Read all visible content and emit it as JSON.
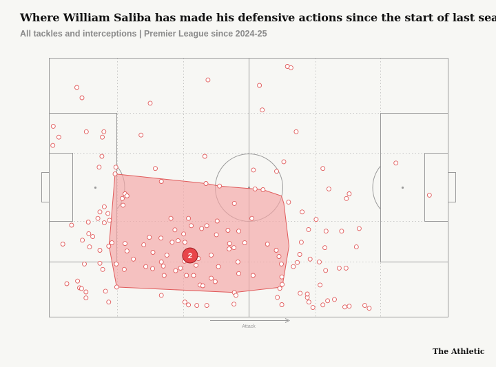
{
  "title": "Where William Saliba has made his defensive actions since the start of last season",
  "subtitle": "All tackles and interceptions | Premier League since 2024-25",
  "brand": "The Athletic",
  "colors": {
    "line": "#9a9a9a",
    "grid": "#b9b9b9",
    "action_stroke": "#e05a5a",
    "action_fill": "#ffffff",
    "hull_fill": "#f4a5a5",
    "hull_stroke": "#e05a5a",
    "centroid_fill": "#e8454a",
    "centroid_stroke": "#9a1f24"
  },
  "chart_data": {
    "type": "scatter",
    "title": "Where William Saliba has made his defensive actions since the start of last season",
    "subtitle": "All tackles and interceptions | Premier League since 2024-25",
    "xlim": [
      0,
      100
    ],
    "ylim": [
      0,
      100
    ],
    "direction_label": "Attack",
    "centroid_label": "2",
    "centroid": [
      35.3,
      23.8
    ],
    "hull": [
      [
        16.5,
        55.3
      ],
      [
        39.3,
        51.6
      ],
      [
        42.7,
        50.6
      ],
      [
        51.4,
        49.5
      ],
      [
        53.6,
        49.2
      ],
      [
        58.2,
        46.8
      ],
      [
        58.8,
        43.9
      ],
      [
        60.1,
        27.4
      ],
      [
        58.4,
        11.6
      ],
      [
        46.4,
        9.5
      ],
      [
        16.9,
        11.6
      ],
      [
        15.0,
        27.4
      ]
    ],
    "points": [
      [
        59.7,
        96.8
      ],
      [
        60.6,
        96.3
      ],
      [
        39.8,
        91.6
      ],
      [
        52.7,
        89.5
      ],
      [
        6.9,
        88.7
      ],
      [
        8.2,
        84.7
      ],
      [
        25.3,
        82.6
      ],
      [
        53.4,
        80.0
      ],
      [
        1.0,
        73.7
      ],
      [
        9.3,
        71.6
      ],
      [
        13.7,
        71.6
      ],
      [
        2.4,
        69.5
      ],
      [
        13.3,
        69.5
      ],
      [
        23.0,
        70.3
      ],
      [
        61.9,
        71.6
      ],
      [
        0.9,
        66.3
      ],
      [
        13.2,
        62.1
      ],
      [
        39.0,
        62.1
      ],
      [
        58.8,
        60.0
      ],
      [
        12.5,
        57.9
      ],
      [
        16.7,
        57.9
      ],
      [
        26.6,
        57.4
      ],
      [
        51.2,
        56.8
      ],
      [
        57.0,
        56.3
      ],
      [
        68.6,
        57.4
      ],
      [
        86.9,
        59.5
      ],
      [
        16.5,
        55.3
      ],
      [
        28.1,
        52.4
      ],
      [
        39.3,
        51.6
      ],
      [
        42.7,
        50.6
      ],
      [
        51.6,
        49.5
      ],
      [
        53.6,
        49.2
      ],
      [
        70.1,
        49.5
      ],
      [
        95.3,
        47.1
      ],
      [
        19.0,
        47.6
      ],
      [
        19.5,
        46.8
      ],
      [
        18.3,
        45.8
      ],
      [
        75.2,
        47.6
      ],
      [
        74.5,
        45.8
      ],
      [
        13.8,
        42.6
      ],
      [
        60.0,
        44.4
      ],
      [
        46.4,
        43.9
      ],
      [
        12.7,
        40.6
      ],
      [
        14.7,
        40.0
      ],
      [
        18.5,
        43.2
      ],
      [
        12.2,
        38.1
      ],
      [
        15.1,
        37.4
      ],
      [
        30.5,
        38.1
      ],
      [
        34.9,
        38.1
      ],
      [
        35.6,
        35.3
      ],
      [
        39.5,
        35.3
      ],
      [
        42.1,
        37.1
      ],
      [
        50.8,
        38.1
      ],
      [
        63.4,
        40.6
      ],
      [
        66.9,
        37.7
      ],
      [
        5.6,
        35.5
      ],
      [
        9.8,
        36.7
      ],
      [
        13.8,
        36.4
      ],
      [
        31.5,
        33.7
      ],
      [
        33.7,
        32.1
      ],
      [
        38.2,
        34.2
      ],
      [
        41.9,
        31.8
      ],
      [
        44.8,
        33.5
      ],
      [
        47.5,
        33.2
      ],
      [
        65.0,
        33.8
      ],
      [
        69.4,
        33.2
      ],
      [
        73.3,
        33.2
      ],
      [
        77.7,
        34.2
      ],
      [
        9.9,
        32.2
      ],
      [
        10.9,
        31.1
      ],
      [
        25.1,
        30.8
      ],
      [
        28.0,
        30.5
      ],
      [
        32.3,
        29.5
      ],
      [
        8.3,
        29.7
      ],
      [
        54.7,
        28.2
      ],
      [
        3.4,
        28.2
      ],
      [
        14.9,
        27.4
      ],
      [
        15.7,
        28.7
      ],
      [
        19.0,
        28.4
      ],
      [
        23.7,
        27.9
      ],
      [
        30.8,
        28.9
      ],
      [
        34.0,
        28.9
      ],
      [
        45.2,
        28.4
      ],
      [
        46.3,
        26.8
      ],
      [
        49.0,
        28.7
      ],
      [
        63.2,
        28.9
      ],
      [
        69.1,
        26.8
      ],
      [
        77.0,
        27.1
      ],
      [
        10.1,
        27.1
      ],
      [
        12.7,
        25.8
      ],
      [
        19.5,
        25.5
      ],
      [
        26.0,
        25.0
      ],
      [
        29.5,
        23.9
      ],
      [
        37.4,
        22.6
      ],
      [
        45.1,
        26.3
      ],
      [
        56.9,
        25.8
      ],
      [
        65.4,
        22.4
      ],
      [
        67.7,
        21.3
      ],
      [
        8.8,
        20.5
      ],
      [
        12.7,
        20.8
      ],
      [
        21.1,
        22.4
      ],
      [
        28.1,
        21.3
      ],
      [
        33.9,
        21.6
      ],
      [
        40.6,
        23.9
      ],
      [
        47.3,
        21.3
      ],
      [
        57.6,
        23.4
      ],
      [
        62.8,
        24.2
      ],
      [
        16.8,
        20.5
      ],
      [
        24.2,
        19.5
      ],
      [
        28.6,
        19.7
      ],
      [
        32.9,
        18.9
      ],
      [
        36.8,
        20.0
      ],
      [
        42.4,
        19.5
      ],
      [
        58.2,
        20.5
      ],
      [
        62.2,
        21.1
      ],
      [
        61.2,
        19.5
      ],
      [
        13.4,
        18.4
      ],
      [
        18.8,
        18.4
      ],
      [
        25.9,
        18.7
      ],
      [
        31.7,
        17.9
      ],
      [
        36.2,
        16.1
      ],
      [
        40.6,
        15.0
      ],
      [
        47.5,
        16.8
      ],
      [
        51.1,
        16.1
      ],
      [
        58.3,
        15.5
      ],
      [
        69.3,
        18.0
      ],
      [
        72.7,
        18.9
      ],
      [
        74.4,
        18.9
      ],
      [
        7.1,
        13.9
      ],
      [
        28.8,
        16.1
      ],
      [
        34.4,
        16.1
      ],
      [
        37.8,
        12.4
      ],
      [
        41.6,
        13.7
      ],
      [
        58.4,
        12.6
      ],
      [
        57.8,
        11.1
      ],
      [
        67.9,
        12.4
      ],
      [
        16.9,
        11.6
      ],
      [
        38.5,
        12.1
      ],
      [
        46.4,
        9.5
      ],
      [
        7.6,
        11.3
      ],
      [
        8.1,
        11.0
      ],
      [
        9.2,
        9.7
      ],
      [
        4.4,
        12.9
      ],
      [
        9.2,
        7.4
      ],
      [
        14.1,
        10.0
      ],
      [
        57.2,
        7.6
      ],
      [
        62.9,
        9.2
      ],
      [
        64.7,
        7.6
      ],
      [
        46.8,
        8.4
      ],
      [
        28.1,
        8.4
      ],
      [
        46.3,
        5.0
      ],
      [
        14.9,
        5.8
      ],
      [
        34.0,
        5.8
      ],
      [
        34.9,
        4.7
      ],
      [
        37.0,
        4.5
      ],
      [
        39.5,
        4.5
      ],
      [
        68.6,
        4.7
      ],
      [
        69.8,
        6.3
      ],
      [
        65.1,
        5.8
      ],
      [
        71.5,
        6.8
      ],
      [
        75.2,
        4.2
      ],
      [
        74.1,
        3.9
      ],
      [
        79.1,
        4.5
      ],
      [
        80.2,
        3.4
      ],
      [
        66.1,
        3.7
      ],
      [
        58.3,
        4.8
      ],
      [
        64.7,
        8.9
      ]
    ]
  }
}
